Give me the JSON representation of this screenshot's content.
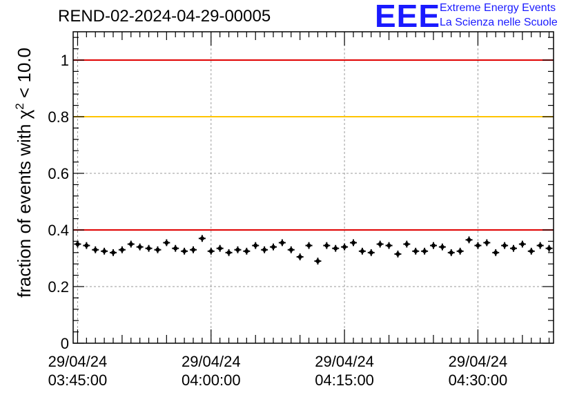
{
  "header": {
    "title": "REND-02-2024-04-29-00005",
    "logo_mark": "EEE",
    "logo_line1": "Extreme Energy Events",
    "logo_line2": "La Scienza nelle Scuole",
    "logo_color": "#1a1aff"
  },
  "chart_data": {
    "type": "scatter",
    "title": "REND-02-2024-04-29-00005",
    "xlabel": "",
    "ylabel": "fraction of events with χ² < 10.0",
    "ylabel_parts": {
      "pre": "fraction of events with ",
      "sym": "χ",
      "sup": "2",
      "post": " < 10.0"
    },
    "xaxis": {
      "type": "time",
      "range": [
        "03:44:30",
        "04:38:30"
      ],
      "major_ticks": [
        {
          "time": "03:45:00",
          "date_label": "29/04/24",
          "time_label": "03:45:00"
        },
        {
          "time": "04:00:00",
          "date_label": "29/04/24",
          "time_label": "04:00:00"
        },
        {
          "time": "04:15:00",
          "date_label": "29/04/24",
          "time_label": "04:15:00"
        },
        {
          "time": "04:30:00",
          "date_label": "29/04/24",
          "time_label": "04:30:00"
        }
      ]
    },
    "ylim": [
      0,
      1.1
    ],
    "yticks": [
      0,
      0.2,
      0.4,
      0.6,
      0.8,
      1
    ],
    "ytick_labels": [
      "0",
      "0.2",
      "0.4",
      "0.6",
      "0.8",
      "1"
    ],
    "grid": true,
    "reference_lines": [
      {
        "y": 1.0,
        "color": "#e00000"
      },
      {
        "y": 0.8,
        "color": "#ffc400"
      },
      {
        "y": 0.4,
        "color": "#e00000"
      }
    ],
    "series": [
      {
        "color": "#000000",
        "x": [
          "03:45:00",
          "03:46:00",
          "03:47:00",
          "03:48:00",
          "03:49:00",
          "03:50:00",
          "03:51:00",
          "03:52:00",
          "03:53:00",
          "03:54:00",
          "03:55:00",
          "03:56:00",
          "03:57:00",
          "03:58:00",
          "03:59:00",
          "04:00:00",
          "04:01:00",
          "04:02:00",
          "04:03:00",
          "04:04:00",
          "04:05:00",
          "04:06:00",
          "04:07:00",
          "04:08:00",
          "04:09:00",
          "04:10:00",
          "04:11:00",
          "04:12:00",
          "04:13:00",
          "04:14:00",
          "04:15:00",
          "04:16:00",
          "04:17:00",
          "04:18:00",
          "04:19:00",
          "04:20:00",
          "04:21:00",
          "04:22:00",
          "04:23:00",
          "04:24:00",
          "04:25:00",
          "04:26:00",
          "04:27:00",
          "04:28:00",
          "04:29:00",
          "04:30:00",
          "04:31:00",
          "04:32:00",
          "04:33:00",
          "04:34:00",
          "04:35:00",
          "04:36:00",
          "04:37:00",
          "04:38:00"
        ],
        "y": [
          0.35,
          0.345,
          0.33,
          0.325,
          0.32,
          0.33,
          0.35,
          0.34,
          0.335,
          0.33,
          0.355,
          0.335,
          0.325,
          0.33,
          0.37,
          0.325,
          0.335,
          0.32,
          0.33,
          0.325,
          0.345,
          0.33,
          0.34,
          0.355,
          0.33,
          0.305,
          0.345,
          0.29,
          0.345,
          0.335,
          0.34,
          0.355,
          0.325,
          0.32,
          0.35,
          0.345,
          0.315,
          0.35,
          0.325,
          0.325,
          0.345,
          0.34,
          0.32,
          0.325,
          0.365,
          0.345,
          0.355,
          0.32,
          0.345,
          0.335,
          0.35,
          0.325,
          0.345,
          0.335
        ],
        "y_error": 0.012
      }
    ]
  }
}
